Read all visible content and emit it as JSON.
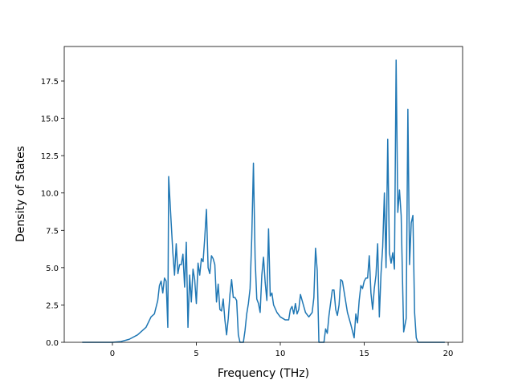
{
  "chart_data": {
    "type": "line",
    "xlabel": "Frequency (THz)",
    "ylabel": "Density of States",
    "xlim": [
      -2.87,
      20.86
    ],
    "ylim": [
      0,
      19.81
    ],
    "xticks": [
      0,
      5,
      10,
      15,
      20
    ],
    "yticks": [
      {
        "value": 0,
        "label": "0.0"
      },
      2.5,
      {
        "value": 5,
        "label": "5.0"
      },
      7.5,
      {
        "value": 10,
        "label": "10.0"
      },
      12.5,
      {
        "value": 15,
        "label": "15.0"
      },
      17.5
    ],
    "grid": false,
    "series": [
      {
        "color": "#1f77b4",
        "x": [
          -1.8,
          0,
          0.5,
          1,
          1.5,
          2,
          2.3,
          2.5,
          2.7,
          2.8,
          2.9,
          3.0,
          3.1,
          3.2,
          3.3,
          3.35,
          3.5,
          3.6,
          3.7,
          3.8,
          3.9,
          4.0,
          4.1,
          4.2,
          4.3,
          4.4,
          4.5,
          4.6,
          4.7,
          4.8,
          4.9,
          5.0,
          5.1,
          5.2,
          5.3,
          5.4,
          5.5,
          5.6,
          5.7,
          5.8,
          5.9,
          6.0,
          6.1,
          6.2,
          6.3,
          6.4,
          6.5,
          6.6,
          6.7,
          6.8,
          6.9,
          7.0,
          7.1,
          7.2,
          7.3,
          7.4,
          7.5,
          7.6,
          7.8,
          7.9,
          8.0,
          8.1,
          8.2,
          8.3,
          8.4,
          8.5,
          8.6,
          8.7,
          8.8,
          8.9,
          9.0,
          9.1,
          9.2,
          9.3,
          9.4,
          9.5,
          9.6,
          9.8,
          10.0,
          10.3,
          10.5,
          10.6,
          10.7,
          10.8,
          10.9,
          11.0,
          11.1,
          11.2,
          11.3,
          11.5,
          11.7,
          11.9,
          12.0,
          12.1,
          12.2,
          12.3,
          12.6,
          12.7,
          12.8,
          12.9,
          13.1,
          13.2,
          13.3,
          13.4,
          13.5,
          13.6,
          13.7,
          13.8,
          14.0,
          14.2,
          14.4,
          14.5,
          14.6,
          14.7,
          14.8,
          14.9,
          15.0,
          15.1,
          15.2,
          15.3,
          15.4,
          15.5,
          15.6,
          15.7,
          15.8,
          15.9,
          16.0,
          16.1,
          16.2,
          16.3,
          16.4,
          16.5,
          16.6,
          16.7,
          16.8,
          16.9,
          17.0,
          17.1,
          17.2,
          17.3,
          17.35,
          17.5,
          17.6,
          17.7,
          17.8,
          17.9,
          18.0,
          18.1,
          18.2,
          19.8
        ],
        "values": [
          0,
          0,
          0.05,
          0.2,
          0.5,
          1.0,
          1.7,
          1.9,
          2.8,
          3.8,
          4.1,
          3.3,
          4.3,
          4.1,
          1.0,
          11.1,
          8.0,
          6.0,
          4.5,
          6.6,
          4.6,
          5.2,
          5.2,
          5.9,
          3.7,
          6.7,
          1.0,
          4.5,
          2.7,
          4.9,
          4.2,
          2.6,
          5.3,
          4.5,
          5.6,
          5.4,
          7.0,
          8.9,
          5.0,
          4.6,
          5.8,
          5.6,
          5.2,
          2.7,
          3.9,
          2.2,
          2.1,
          2.9,
          1.5,
          0.5,
          1.6,
          3.2,
          4.2,
          3.0,
          3.0,
          2.8,
          0.5,
          0,
          0,
          0.8,
          1.9,
          2.6,
          3.6,
          7.0,
          12.0,
          5.6,
          2.9,
          2.6,
          2.0,
          4.5,
          5.7,
          4.0,
          2.8,
          7.6,
          3.1,
          3.3,
          2.5,
          2.0,
          1.7,
          1.5,
          1.5,
          2.2,
          2.4,
          1.9,
          2.6,
          1.9,
          2.2,
          3.2,
          2.8,
          2.0,
          1.7,
          2.0,
          3.0,
          6.3,
          4.8,
          0,
          0,
          0.9,
          0.6,
          1.8,
          3.5,
          3.5,
          2.2,
          1.8,
          2.5,
          4.2,
          4.1,
          3.4,
          2.0,
          1.2,
          0.3,
          1.9,
          1.3,
          2.8,
          3.8,
          3.6,
          4.1,
          4.3,
          4.3,
          5.8,
          3.3,
          2.2,
          3.6,
          4.5,
          6.6,
          1.7,
          4.6,
          6.4,
          10.0,
          5.0,
          13.6,
          6.0,
          5.3,
          6.0,
          4.9,
          18.9,
          8.7,
          10.2,
          8.5,
          3.2,
          0.7,
          1.6,
          15.6,
          5.2,
          8.0,
          8.5,
          2.0,
          0.3,
          0,
          0
        ]
      }
    ]
  }
}
